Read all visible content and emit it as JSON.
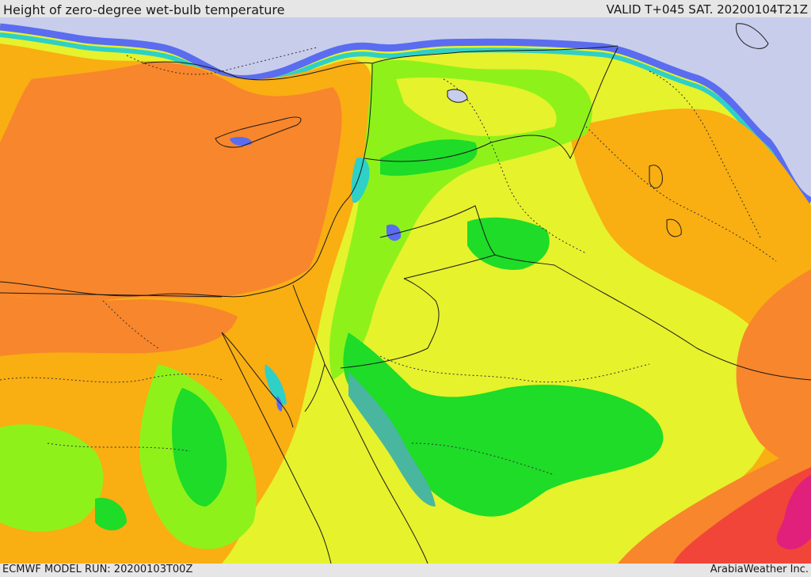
{
  "header": {
    "title": "Height of zero-degree wet-bulb temperature",
    "valid_time": "VALID T+045 SAT. 20200104T21Z"
  },
  "footer": {
    "model_run": "ECMWF MODEL RUN: 20200103T00Z",
    "credit": "ArabiaWeather Inc."
  },
  "map": {
    "colors": {
      "lavender": "#c8cdec",
      "blue": "#5a6cf0",
      "light_blue": "#8fa8f5",
      "cyan": "#2ed0c8",
      "teal": "#49b6a0",
      "green": "#1edc28",
      "lime": "#8ef21a",
      "yellow": "#e6f22c",
      "orange": "#f9ae12",
      "dark_orange": "#f8862c",
      "red": "#f2453a",
      "magenta": "#e0207a"
    }
  }
}
